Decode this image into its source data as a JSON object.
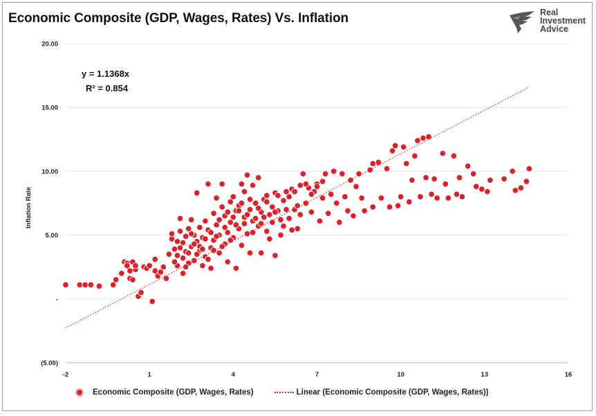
{
  "title": "Economic Composite (GDP, Wages, Rates) Vs. Inflation",
  "logo": {
    "name": "Real Investment Advice",
    "lines": [
      "Real",
      "Investment",
      "Advice"
    ]
  },
  "equation": "y = 1.1368x",
  "r_squared": "R² = 0.854",
  "legend": {
    "series_label": "Economic Composite (GDP, Wages, Rates)",
    "trend_label": "Linear (Economic Composite (GDP, Wages, Rates))"
  },
  "colors": {
    "marker": "#d9222a",
    "trend": "#d9222a",
    "grid": "#e6e6e6"
  },
  "chart_data": {
    "type": "scatter",
    "title": "Economic Composite (GDP, Wages, Rates) Vs. Inflation",
    "xlabel": "",
    "ylabel": "Inflation Rate",
    "xlim": [
      -2,
      16
    ],
    "ylim": [
      -5,
      20
    ],
    "x_ticks": [
      "-2",
      "1",
      "4",
      "7",
      "10",
      "13",
      "16"
    ],
    "y_ticks": [
      "(5.00)",
      "-",
      "5.00",
      "10.00",
      "15.00",
      "20.00"
    ],
    "y_tick_values": [
      -5,
      0,
      5,
      10,
      15,
      20
    ],
    "x_tick_values": [
      -2,
      1,
      4,
      7,
      10,
      13,
      16
    ],
    "grid": "horizontal",
    "legend_position": "bottom",
    "trendline": {
      "type": "linear",
      "slope": 1.1368,
      "intercept": 0,
      "x_range": [
        -2,
        14.6
      ]
    },
    "series": [
      {
        "name": "Economic Composite (GDP, Wages, Rates)",
        "points": [
          [
            -2.0,
            1.1
          ],
          [
            -1.5,
            1.1
          ],
          [
            -1.3,
            1.1
          ],
          [
            -1.1,
            1.1
          ],
          [
            -0.8,
            1.0
          ],
          [
            -0.3,
            1.1
          ],
          [
            -0.2,
            1.5
          ],
          [
            0.0,
            2.0
          ],
          [
            0.1,
            2.9
          ],
          [
            0.2,
            2.8
          ],
          [
            0.2,
            2.6
          ],
          [
            0.3,
            1.6
          ],
          [
            0.3,
            2.2
          ],
          [
            0.4,
            2.9
          ],
          [
            0.4,
            1.5
          ],
          [
            0.5,
            2.3
          ],
          [
            0.5,
            2.6
          ],
          [
            0.6,
            0.2
          ],
          [
            0.7,
            0.5
          ],
          [
            0.8,
            2.5
          ],
          [
            0.9,
            2.4
          ],
          [
            1.0,
            2.6
          ],
          [
            1.1,
            -0.2
          ],
          [
            1.2,
            3.1
          ],
          [
            1.2,
            2.2
          ],
          [
            1.3,
            1.8
          ],
          [
            1.4,
            2.1
          ],
          [
            1.5,
            2.5
          ],
          [
            1.6,
            1.6
          ],
          [
            1.7,
            3.5
          ],
          [
            1.8,
            4.7
          ],
          [
            1.8,
            5.1
          ],
          [
            1.9,
            3.9
          ],
          [
            2.0,
            4.5
          ],
          [
            2.0,
            2.6
          ],
          [
            2.1,
            5.3
          ],
          [
            2.1,
            6.3
          ],
          [
            2.2,
            3.2
          ],
          [
            2.2,
            2.0
          ],
          [
            2.3,
            4.9
          ],
          [
            2.3,
            3.7
          ],
          [
            2.4,
            5.5
          ],
          [
            2.4,
            2.8
          ],
          [
            2.5,
            4.1
          ],
          [
            2.5,
            6.2
          ],
          [
            2.6,
            3.0
          ],
          [
            2.6,
            5.0
          ],
          [
            2.7,
            4.5
          ],
          [
            2.7,
            8.3
          ],
          [
            2.8,
            3.8
          ],
          [
            2.8,
            5.6
          ],
          [
            2.9,
            2.6
          ],
          [
            2.9,
            4.8
          ],
          [
            3.0,
            6.1
          ],
          [
            3.0,
            3.3
          ],
          [
            3.1,
            9.0
          ],
          [
            3.1,
            5.4
          ],
          [
            3.2,
            4.0
          ],
          [
            3.2,
            2.4
          ],
          [
            3.3,
            6.7
          ],
          [
            3.3,
            4.6
          ],
          [
            3.4,
            7.9
          ],
          [
            3.4,
            5.8
          ],
          [
            3.5,
            3.6
          ],
          [
            3.5,
            5.0
          ],
          [
            3.6,
            9.0
          ],
          [
            3.6,
            7.2
          ],
          [
            3.7,
            4.3
          ],
          [
            3.7,
            6.5
          ],
          [
            3.8,
            2.9
          ],
          [
            3.8,
            5.2
          ],
          [
            3.9,
            7.6
          ],
          [
            3.9,
            6.0
          ],
          [
            4.0,
            4.8
          ],
          [
            4.0,
            8.0
          ],
          [
            4.1,
            6.9
          ],
          [
            4.1,
            2.4
          ],
          [
            4.2,
            5.5
          ],
          [
            4.2,
            7.3
          ],
          [
            4.3,
            9.0
          ],
          [
            4.3,
            4.2
          ],
          [
            4.4,
            6.4
          ],
          [
            4.4,
            8.4
          ],
          [
            4.5,
            5.1
          ],
          [
            4.5,
            9.7
          ],
          [
            4.6,
            7.0
          ],
          [
            4.6,
            3.6
          ],
          [
            4.7,
            6.1
          ],
          [
            4.7,
            8.9
          ],
          [
            4.8,
            7.5
          ],
          [
            4.9,
            5.7
          ],
          [
            4.9,
            9.5
          ],
          [
            5.0,
            6.8
          ],
          [
            5.0,
            3.6
          ],
          [
            5.1,
            7.8
          ],
          [
            5.2,
            5.3
          ],
          [
            5.2,
            8.1
          ],
          [
            5.3,
            6.6
          ],
          [
            5.4,
            7.2
          ],
          [
            5.5,
            3.4
          ],
          [
            5.5,
            8.3
          ],
          [
            5.6,
            6.9
          ],
          [
            5.7,
            5.0
          ],
          [
            5.8,
            7.7
          ],
          [
            5.9,
            8.4
          ],
          [
            6.0,
            6.3
          ],
          [
            6.1,
            8.6
          ],
          [
            6.2,
            7.0
          ],
          [
            6.3,
            5.5
          ],
          [
            6.4,
            8.9
          ],
          [
            6.5,
            9.8
          ],
          [
            6.6,
            7.5
          ],
          [
            6.7,
            8.7
          ],
          [
            6.8,
            6.8
          ],
          [
            6.9,
            8.4
          ],
          [
            7.0,
            9.0
          ],
          [
            7.1,
            6.1
          ],
          [
            7.2,
            7.9
          ],
          [
            7.3,
            9.8
          ],
          [
            7.4,
            6.7
          ],
          [
            7.5,
            8.2
          ],
          [
            7.6,
            10.0
          ],
          [
            7.7,
            7.5
          ],
          [
            7.8,
            6.0
          ],
          [
            7.9,
            9.8
          ],
          [
            8.0,
            8.0
          ],
          [
            8.1,
            6.9
          ],
          [
            8.2,
            9.3
          ],
          [
            8.3,
            6.5
          ],
          [
            8.4,
            8.8
          ],
          [
            8.5,
            9.8
          ],
          [
            8.6,
            7.9
          ],
          [
            8.7,
            6.9
          ],
          [
            8.9,
            10.1
          ],
          [
            9.0,
            10.6
          ],
          [
            9.0,
            7.2
          ],
          [
            9.2,
            10.7
          ],
          [
            9.3,
            7.9
          ],
          [
            9.5,
            10.2
          ],
          [
            9.6,
            7.2
          ],
          [
            9.7,
            11.6
          ],
          [
            9.8,
            12.0
          ],
          [
            9.9,
            7.3
          ],
          [
            10.0,
            8.0
          ],
          [
            10.1,
            11.9
          ],
          [
            10.2,
            10.6
          ],
          [
            10.3,
            7.6
          ],
          [
            10.4,
            9.3
          ],
          [
            10.5,
            11.2
          ],
          [
            10.6,
            12.4
          ],
          [
            10.7,
            8.0
          ],
          [
            10.8,
            12.6
          ],
          [
            10.9,
            9.5
          ],
          [
            11.0,
            12.7
          ],
          [
            11.1,
            8.2
          ],
          [
            11.2,
            9.4
          ],
          [
            11.3,
            7.9
          ],
          [
            11.5,
            11.4
          ],
          [
            11.6,
            9.0
          ],
          [
            11.7,
            7.9
          ],
          [
            11.9,
            11.2
          ],
          [
            12.0,
            8.2
          ],
          [
            12.1,
            9.5
          ],
          [
            12.2,
            8.0
          ],
          [
            12.4,
            10.4
          ],
          [
            12.6,
            9.8
          ],
          [
            12.7,
            8.8
          ],
          [
            12.9,
            8.6
          ],
          [
            13.1,
            8.4
          ],
          [
            13.2,
            9.3
          ],
          [
            13.7,
            9.4
          ],
          [
            14.0,
            10.0
          ],
          [
            14.1,
            8.5
          ],
          [
            14.3,
            8.7
          ],
          [
            14.5,
            9.2
          ],
          [
            14.6,
            10.2
          ],
          [
            1.9,
            2.9
          ],
          [
            2.0,
            3.4
          ],
          [
            2.1,
            4.0
          ],
          [
            2.2,
            4.4
          ],
          [
            2.3,
            2.5
          ],
          [
            2.4,
            3.6
          ],
          [
            2.5,
            5.1
          ],
          [
            2.6,
            4.3
          ],
          [
            2.7,
            3.5
          ],
          [
            2.8,
            4.1
          ],
          [
            2.9,
            3.9
          ],
          [
            3.0,
            4.7
          ],
          [
            3.1,
            3.1
          ],
          [
            3.2,
            5.2
          ],
          [
            3.3,
            3.8
          ],
          [
            3.4,
            4.9
          ],
          [
            3.5,
            6.2
          ],
          [
            3.6,
            4.1
          ],
          [
            3.7,
            5.6
          ],
          [
            3.8,
            6.8
          ],
          [
            3.9,
            4.6
          ],
          [
            4.0,
            6.4
          ],
          [
            4.1,
            5.8
          ],
          [
            4.2,
            6.9
          ],
          [
            4.3,
            7.5
          ],
          [
            4.4,
            5.9
          ],
          [
            4.5,
            6.6
          ],
          [
            4.6,
            7.8
          ],
          [
            4.7,
            5.2
          ],
          [
            4.8,
            6.3
          ],
          [
            4.9,
            7.1
          ],
          [
            5.0,
            5.9
          ],
          [
            5.1,
            6.4
          ],
          [
            5.2,
            7.6
          ],
          [
            5.3,
            4.7
          ],
          [
            5.4,
            6.0
          ],
          [
            5.5,
            6.8
          ],
          [
            5.6,
            8.1
          ],
          [
            5.7,
            6.2
          ],
          [
            5.8,
            5.7
          ],
          [
            5.9,
            7.0
          ],
          [
            6.0,
            8.0
          ],
          [
            6.1,
            5.4
          ],
          [
            6.2,
            8.4
          ],
          [
            6.3,
            7.3
          ],
          [
            6.4,
            6.6
          ],
          [
            6.6,
            9.0
          ],
          [
            6.8,
            8.2
          ],
          [
            7.0,
            8.8
          ],
          [
            7.2,
            9.2
          ]
        ]
      }
    ]
  }
}
